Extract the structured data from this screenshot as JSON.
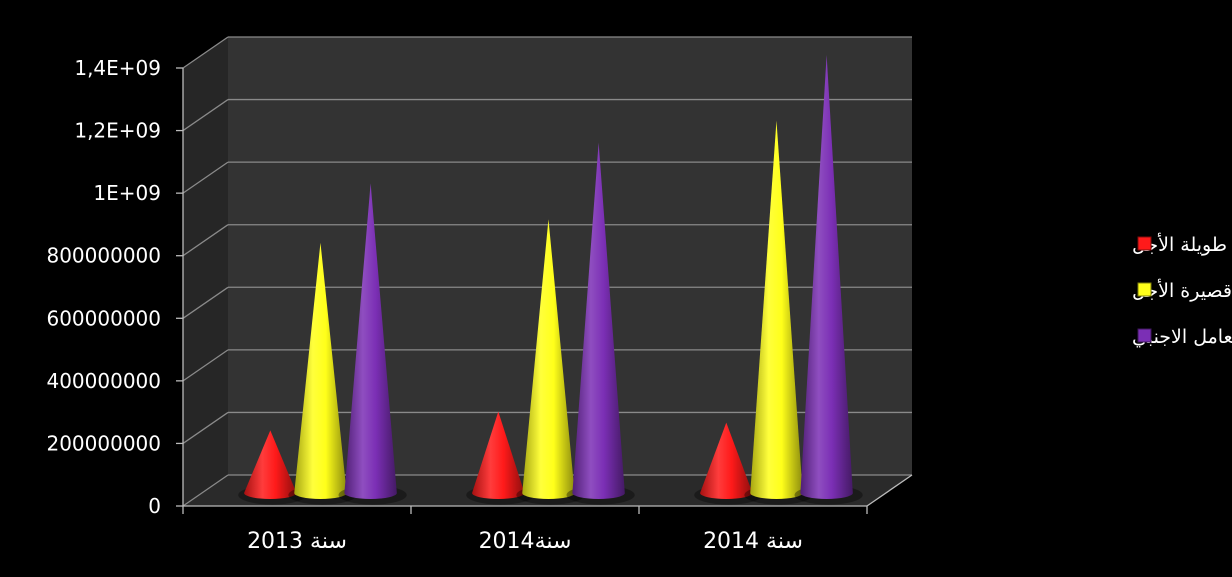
{
  "chart_data": {
    "type": "bar",
    "style": "3d-cone",
    "categories": [
      "سنة 2013",
      "سنة2014",
      "سنة 2014"
    ],
    "series": [
      {
        "name": "ديون طويلة الأجل",
        "color": "#FF1A1A",
        "values": [
          200000000,
          260000000,
          225000000
        ]
      },
      {
        "name": "ديون قصيرة الأجل",
        "color": "#FFFF1A",
        "values": [
          800000000,
          875000000,
          1190000000
        ]
      },
      {
        "name": "رأس المال العامل الاجنبي",
        "color": "#7B2FB5",
        "values": [
          990000000,
          1120000000,
          1400000000
        ]
      }
    ],
    "y_ticks": [
      "0",
      "200000000",
      "400000000",
      "600000000",
      "800000000",
      "1E+09",
      "1,2E+09",
      "1,4E+09"
    ],
    "ylim": [
      0,
      1400000000
    ],
    "grid": true,
    "legend_position": "right",
    "background": "#000000",
    "wall_color": "#333333",
    "floor_color": "#2a2a2a"
  }
}
